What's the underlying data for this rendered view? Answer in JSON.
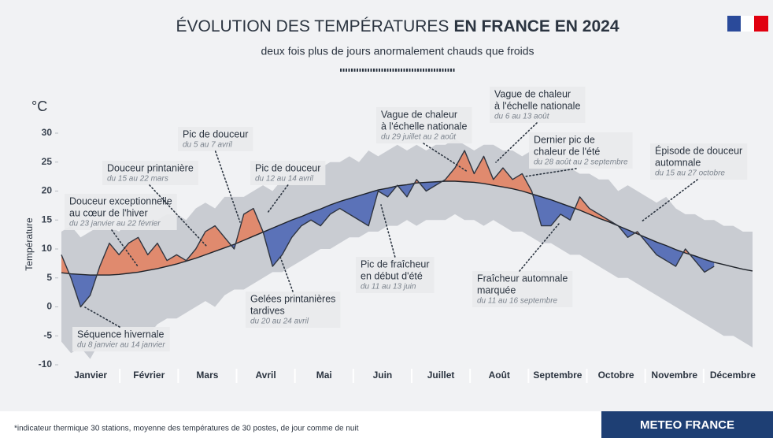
{
  "chart_data": {
    "type": "line",
    "title": [
      "ÉVOLUTION DES TEMPÉRATURES",
      "EN FRANCE EN 2024"
    ],
    "subtitle": "deux fois plus de jours anormalement chauds que froids",
    "y_unit": "°C",
    "y_label": "Température",
    "footnote": "*indicateur thermique 30 stations, moyenne des températures de 30 postes, de jour comme de nuit",
    "brand": "METEO FRANCE",
    "categories": [
      "Janvier",
      "Février",
      "Mars",
      "Avril",
      "Mai",
      "Juin",
      "Juillet",
      "Août",
      "Septembre",
      "Octobre",
      "Novembre",
      "Décembre"
    ],
    "ylim": [
      -10,
      30
    ],
    "yticks": [
      30,
      25,
      20,
      15,
      10,
      5,
      0,
      -5,
      -10
    ],
    "observed": {
      "color": "#2f3540",
      "values": [
        9,
        5,
        0,
        2,
        7,
        11,
        9,
        11,
        12,
        9,
        11,
        8,
        9,
        8,
        10,
        13,
        14,
        12,
        10,
        16,
        17,
        13,
        7,
        9,
        12,
        14,
        15,
        14,
        16,
        17,
        16,
        15,
        14,
        20,
        19,
        21,
        19,
        22,
        20,
        21,
        22,
        24,
        27,
        23,
        26,
        22,
        24,
        22,
        23,
        20,
        14,
        14,
        16,
        15,
        19,
        17,
        16,
        15,
        14,
        12,
        13,
        11,
        9,
        8,
        7,
        10,
        8,
        6,
        7,
        null,
        null,
        null,
        null
      ]
    },
    "normal": {
      "color": "#1e2229",
      "values": [
        5.9,
        5.7,
        5.6,
        5.5,
        5.5,
        5.5,
        5.6,
        5.8,
        6.0,
        6.3,
        6.6,
        7.0,
        7.4,
        7.9,
        8.4,
        9.0,
        9.6,
        10.2,
        10.8,
        11.5,
        12.2,
        12.9,
        13.6,
        14.3,
        15.0,
        15.6,
        16.3,
        16.9,
        17.6,
        18.2,
        18.7,
        19.2,
        19.7,
        20.2,
        20.5,
        20.9,
        21.1,
        21.4,
        21.5,
        21.6,
        21.7,
        21.7,
        21.6,
        21.5,
        21.3,
        21.0,
        20.7,
        20.4,
        20.0,
        19.5,
        19.0,
        18.5,
        17.9,
        17.3,
        16.7,
        16.0,
        15.3,
        14.7,
        14.0,
        13.3,
        12.6,
        11.9,
        11.2,
        10.6,
        9.9,
        9.3,
        8.8,
        8.2,
        7.7,
        7.3,
        6.9,
        6.5,
        6.2
      ]
    },
    "band": {
      "color": "#c9ccd2",
      "high": [
        13,
        14,
        12,
        13,
        14,
        14,
        13,
        15,
        14,
        15,
        15,
        16,
        16,
        15,
        17,
        18,
        17,
        19,
        19,
        19,
        20,
        21,
        20,
        22,
        23,
        22,
        24,
        24,
        25,
        25,
        26,
        25,
        27,
        26,
        27,
        28,
        27,
        28,
        27,
        28,
        28,
        29,
        28,
        27,
        28,
        28,
        27,
        27,
        26,
        27,
        26,
        25,
        25,
        24,
        23,
        23,
        22,
        22,
        20,
        21,
        20,
        19,
        18,
        19,
        17,
        16,
        16,
        15,
        15,
        14,
        14,
        13,
        13
      ],
      "low": [
        -6,
        -8,
        -7,
        -9,
        -6,
        -7,
        -5,
        -6,
        -4,
        -5,
        -3,
        -2,
        -2,
        -1,
        0,
        1,
        0,
        2,
        3,
        3,
        4,
        5,
        6,
        6,
        7,
        8,
        9,
        10,
        10,
        11,
        12,
        12,
        13,
        13,
        14,
        14,
        15,
        14,
        15,
        15,
        15,
        16,
        15,
        15,
        14,
        15,
        14,
        13,
        13,
        12,
        11,
        11,
        10,
        9,
        9,
        8,
        7,
        6,
        5,
        5,
        4,
        3,
        2,
        1,
        0,
        -1,
        -2,
        -3,
        -4,
        -5,
        -5,
        -6,
        -7
      ]
    },
    "warm_color": "#e08a6e",
    "cold_color": "#5b72b8",
    "annotations": [
      {
        "lines": [
          "Douceur exceptionnelle",
          "au cœur de l'hiver"
        ],
        "date": "du 23 janvier au 22 février"
      },
      {
        "lines": [
          "Douceur printanière"
        ],
        "date": "du 15 au 22 mars"
      },
      {
        "lines": [
          "Pic de douceur"
        ],
        "date": "du 5 au 7 avril"
      },
      {
        "lines": [
          "Pic de douceur"
        ],
        "date": "du 12 au 14 avril"
      },
      {
        "lines": [
          "Gelées printanières",
          "tardives"
        ],
        "date": "du 20 au 24 avril"
      },
      {
        "lines": [
          "Séquence hivernale"
        ],
        "date": "du 8 janvier au 14 janvier"
      },
      {
        "lines": [
          "Vague de chaleur",
          "à l'échelle nationale"
        ],
        "date": "du 29 juillet au 2 août"
      },
      {
        "lines": [
          "Vague de chaleur",
          "à l'échelle nationale"
        ],
        "date": "du 6 au 13 août"
      },
      {
        "lines": [
          "Pic de fraîcheur",
          "en début d'été"
        ],
        "date": "du 11 au 13 juin"
      },
      {
        "lines": [
          "Dernier pic de",
          "chaleur de l'été"
        ],
        "date": "du 28 août au 2 septembre"
      },
      {
        "lines": [
          "Fraîcheur automnale",
          "marquée"
        ],
        "date": "du 11 au 16 septembre"
      },
      {
        "lines": [
          "Épisode de douceur",
          "automnale"
        ],
        "date": "du 15 au 27 octobre"
      }
    ]
  }
}
